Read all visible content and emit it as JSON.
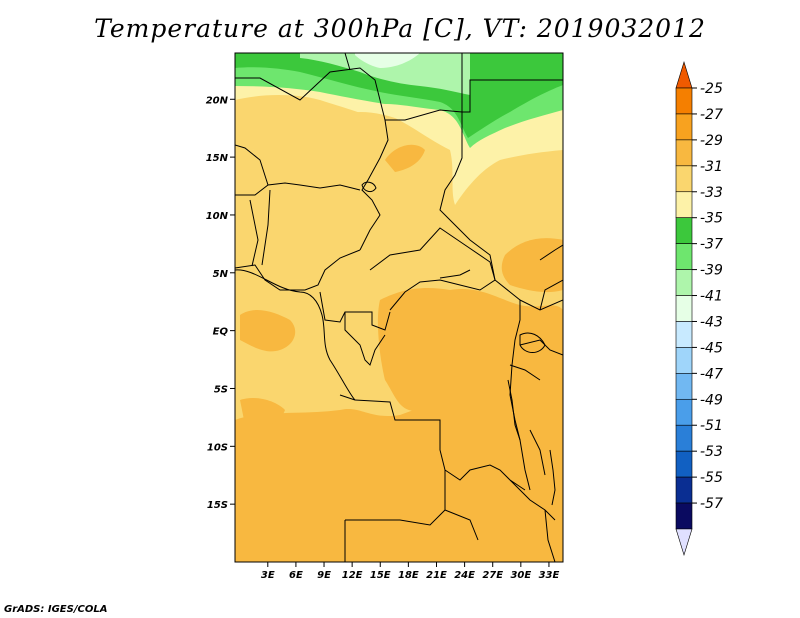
{
  "title": "Temperature at 300hPa [C], VT: 2019032012",
  "credit": "GrADS: IGES/COLA",
  "map": {
    "lon_range": [
      -0.5,
      34.5
    ],
    "lat_range": [
      -20,
      24
    ],
    "lat_ticks": [
      {
        "value": 20,
        "label": "20N"
      },
      {
        "value": 15,
        "label": "15N"
      },
      {
        "value": 10,
        "label": "10N"
      },
      {
        "value": 5,
        "label": "5N"
      },
      {
        "value": 0,
        "label": "EQ"
      },
      {
        "value": -5,
        "label": "5S"
      },
      {
        "value": -10,
        "label": "10S"
      },
      {
        "value": -15,
        "label": "15S"
      }
    ],
    "lon_ticks": [
      {
        "value": 3,
        "label": "3E"
      },
      {
        "value": 6,
        "label": "6E"
      },
      {
        "value": 9,
        "label": "9E"
      },
      {
        "value": 12,
        "label": "12E"
      },
      {
        "value": 15,
        "label": "15E"
      },
      {
        "value": 18,
        "label": "18E"
      },
      {
        "value": 21,
        "label": "21E"
      },
      {
        "value": 24,
        "label": "24E"
      },
      {
        "value": 27,
        "label": "27E"
      },
      {
        "value": 30,
        "label": "30E"
      },
      {
        "value": 33,
        "label": "33E"
      }
    ]
  },
  "colorbar": {
    "levels": [
      "-25",
      "-27",
      "-29",
      "-31",
      "-33",
      "-35",
      "-37",
      "-39",
      "-41",
      "-43",
      "-45",
      "-47",
      "-49",
      "-51",
      "-53",
      "-55",
      "-57"
    ],
    "colors": [
      "#f05a00",
      "#f57f00",
      "#f8a21f",
      "#f8b840",
      "#fad66e",
      "#fdf2a8",
      "#3cc83c",
      "#6ee66e",
      "#aef5ab",
      "#e6ffe6",
      "#c8eaff",
      "#9fd5fa",
      "#71b8f2",
      "#4a9eea",
      "#2a7fd8",
      "#1160c2",
      "#0a2e92",
      "#0a0a60",
      "#e0e0ff"
    ]
  },
  "fields": {
    "color_tan": "#fad66e",
    "color_orange": "#f8b840",
    "color_light": "#fdf2a8",
    "color_green1": "#3cc83c",
    "color_green2": "#6ee66e",
    "color_green3": "#aef5ab",
    "color_pale": "#e6ffe6"
  }
}
